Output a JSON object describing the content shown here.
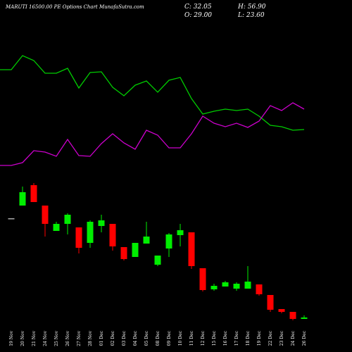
{
  "chart_data": {
    "type": "candlestick",
    "title": "MARUTI 16500.00 PE Options Chart MunafaSutra.com",
    "stats": [
      "C: 32.05",
      "H: 56.90",
      "O: 29.00",
      "L: 23.60"
    ],
    "categories": [
      "19 Nov",
      "20 Nov",
      "21 Nov",
      "24 Nov",
      "25 Nov",
      "26 Nov",
      "27 Nov",
      "28 Nov",
      "01 Dec",
      "02 Dec",
      "03 Dec",
      "04 Dec",
      "05 Dec",
      "08 Dec",
      "09 Dec",
      "10 Dec",
      "11 Dec",
      "12 Dec",
      "15 Dec",
      "16 Dec",
      "17 Dec",
      "18 Dec",
      "19 Dec",
      "22 Dec",
      "23 Dec",
      "24 Dec",
      "26 Dec"
    ],
    "open": [
      300,
      336,
      394,
      336,
      264,
      284,
      274,
      230,
      278,
      284,
      218,
      190,
      228,
      168,
      214,
      252,
      260,
      158,
      98,
      106,
      100,
      100,
      112,
      82,
      42,
      34,
      14
    ],
    "high": [
      300,
      390,
      400,
      336,
      290,
      314,
      274,
      294,
      310,
      284,
      218,
      230,
      290,
      194,
      258,
      284,
      260,
      158,
      114,
      122,
      118,
      164,
      112,
      82,
      42,
      34,
      24
    ],
    "low": [
      300,
      336,
      346,
      248,
      264,
      254,
      200,
      216,
      260,
      208,
      180,
      190,
      228,
      164,
      190,
      220,
      156,
      92,
      94,
      106,
      94,
      100,
      80,
      34,
      30,
      10,
      14
    ],
    "close": [
      300,
      374,
      346,
      284,
      284,
      310,
      216,
      290,
      294,
      220,
      184,
      230,
      248,
      194,
      254,
      266,
      164,
      96,
      108,
      118,
      114,
      120,
      84,
      40,
      34,
      14,
      18
    ],
    "up_color": "#00ee00",
    "down_color": "#ff0000",
    "flat_color": "#aaaaaa",
    "ylim": [
      0,
      400
    ],
    "series": [
      {
        "color": "#00cc00",
        "axis": "y2",
        "values": [
          151,
          171,
          164,
          146,
          146,
          153,
          125,
          147,
          148,
          126,
          114,
          129,
          135,
          119,
          136,
          140,
          110,
          88,
          92,
          95,
          93,
          95,
          85,
          72,
          70,
          65,
          66
        ]
      },
      {
        "color": "#cc00cc",
        "axis": "y2",
        "values": [
          15,
          19,
          36,
          34,
          28,
          52,
          29,
          28,
          46,
          60,
          47,
          38,
          65,
          58,
          40,
          40,
          60,
          85,
          75,
          70,
          75,
          69,
          78,
          100,
          93,
          104,
          95
        ]
      }
    ],
    "y2lim": [
      0,
      200
    ]
  }
}
